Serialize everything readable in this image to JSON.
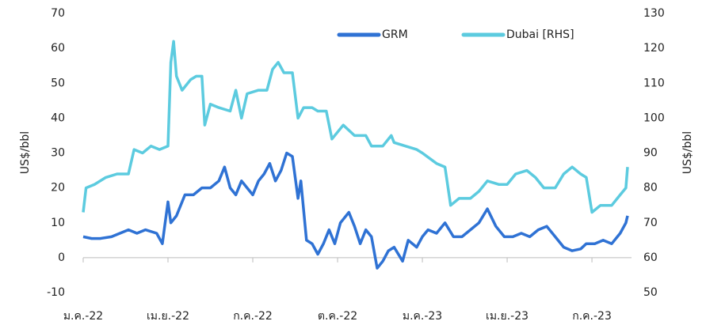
{
  "chart_data": {
    "type": "line",
    "y_label": "US$/bbl",
    "y2_label": "US$/bbl",
    "xlim": [
      0,
      19.4
    ],
    "xticks": [
      {
        "value": 0,
        "label": "ม.ค.-22"
      },
      {
        "value": 3,
        "label": "เม.ย.-22"
      },
      {
        "value": 6,
        "label": "ก.ค.-22"
      },
      {
        "value": 9,
        "label": "ต.ค.-22"
      },
      {
        "value": 12,
        "label": "ม.ค.-23"
      },
      {
        "value": 15,
        "label": "เม.ย.-23"
      },
      {
        "value": 18,
        "label": "ก.ค.-23"
      }
    ],
    "ylim": [
      -10,
      70
    ],
    "yticks": [
      -10,
      0,
      10,
      20,
      30,
      40,
      50,
      60,
      70
    ],
    "y2lim": [
      50,
      130
    ],
    "y2ticks": [
      50,
      60,
      70,
      80,
      90,
      100,
      110,
      120,
      130
    ],
    "legend": "top",
    "series": [
      {
        "name": "GRM",
        "color": "#2f72d4",
        "x": [
          0,
          0.3,
          0.6,
          1.0,
          1.3,
          1.6,
          1.9,
          2.2,
          2.6,
          2.8,
          2.9,
          3.0,
          3.1,
          3.3,
          3.6,
          3.9,
          4.2,
          4.5,
          4.8,
          5.0,
          5.2,
          5.4,
          5.6,
          5.8,
          6.0,
          6.2,
          6.4,
          6.6,
          6.8,
          7.0,
          7.2,
          7.4,
          7.6,
          7.7,
          7.9,
          8.1,
          8.3,
          8.5,
          8.7,
          8.9,
          9.1,
          9.4,
          9.6,
          9.8,
          10.0,
          10.2,
          10.4,
          10.6,
          10.8,
          11.0,
          11.3,
          11.5,
          11.8,
          12.0,
          12.2,
          12.5,
          12.8,
          13.1,
          13.4,
          13.7,
          14.0,
          14.3,
          14.6,
          14.9,
          15.2,
          15.5,
          15.8,
          16.1,
          16.4,
          16.7,
          17.0,
          17.3,
          17.6,
          17.8,
          18.1,
          18.4,
          18.7,
          19.0,
          19.2,
          19.26
        ],
        "values": [
          6,
          5.5,
          5.5,
          6,
          7,
          8,
          7,
          8,
          7,
          4,
          10,
          16,
          10,
          12,
          18,
          18,
          20,
          20,
          22,
          26,
          20,
          18,
          22,
          20,
          18,
          22,
          24,
          27,
          22,
          25,
          30,
          29,
          17,
          22,
          5,
          4,
          1,
          4,
          8,
          4,
          10,
          13,
          9,
          4,
          8,
          6,
          -3,
          -1,
          2,
          3,
          -1,
          5,
          3,
          6,
          8,
          7,
          10,
          6,
          6,
          8,
          10,
          14,
          9,
          6,
          6,
          7,
          6,
          8,
          9,
          6,
          3,
          2,
          2.5,
          4,
          4,
          5,
          4,
          7,
          10,
          12
        ]
      },
      {
        "name": "Dubai [RHS]",
        "color": "#5ccbdf",
        "axis": "y2",
        "x": [
          0,
          0.1,
          0.4,
          0.8,
          1.2,
          1.6,
          1.8,
          2.1,
          2.4,
          2.7,
          3.0,
          3.1,
          3.2,
          3.3,
          3.5,
          3.8,
          4.0,
          4.2,
          4.3,
          4.5,
          4.8,
          5.2,
          5.4,
          5.6,
          5.8,
          6.2,
          6.5,
          6.7,
          6.9,
          7.1,
          7.4,
          7.6,
          7.8,
          8.1,
          8.3,
          8.6,
          8.8,
          9.2,
          9.6,
          10.0,
          10.2,
          10.6,
          10.9,
          11.0,
          11.4,
          11.8,
          12.0,
          12.5,
          12.8,
          13.0,
          13.3,
          13.7,
          14.0,
          14.3,
          14.7,
          15.0,
          15.3,
          15.7,
          16.0,
          16.3,
          16.7,
          17.0,
          17.3,
          17.6,
          17.8,
          18.0,
          18.3,
          18.7,
          19.0,
          19.2,
          19.26
        ],
        "values": [
          73,
          80,
          81,
          83,
          84,
          84,
          91,
          90,
          92,
          91,
          92,
          116,
          122,
          112,
          108,
          111,
          112,
          112,
          98,
          104,
          103,
          102,
          108,
          100,
          107,
          108,
          108,
          114,
          116,
          113,
          113,
          100,
          103,
          103,
          102,
          102,
          94,
          98,
          95,
          95,
          92,
          92,
          95,
          93,
          92,
          91,
          90,
          87,
          86,
          75,
          77,
          77,
          79,
          82,
          81,
          81,
          84,
          85,
          83,
          80,
          80,
          84,
          86,
          84,
          83,
          73,
          75,
          75,
          78,
          80,
          86
        ]
      }
    ]
  }
}
